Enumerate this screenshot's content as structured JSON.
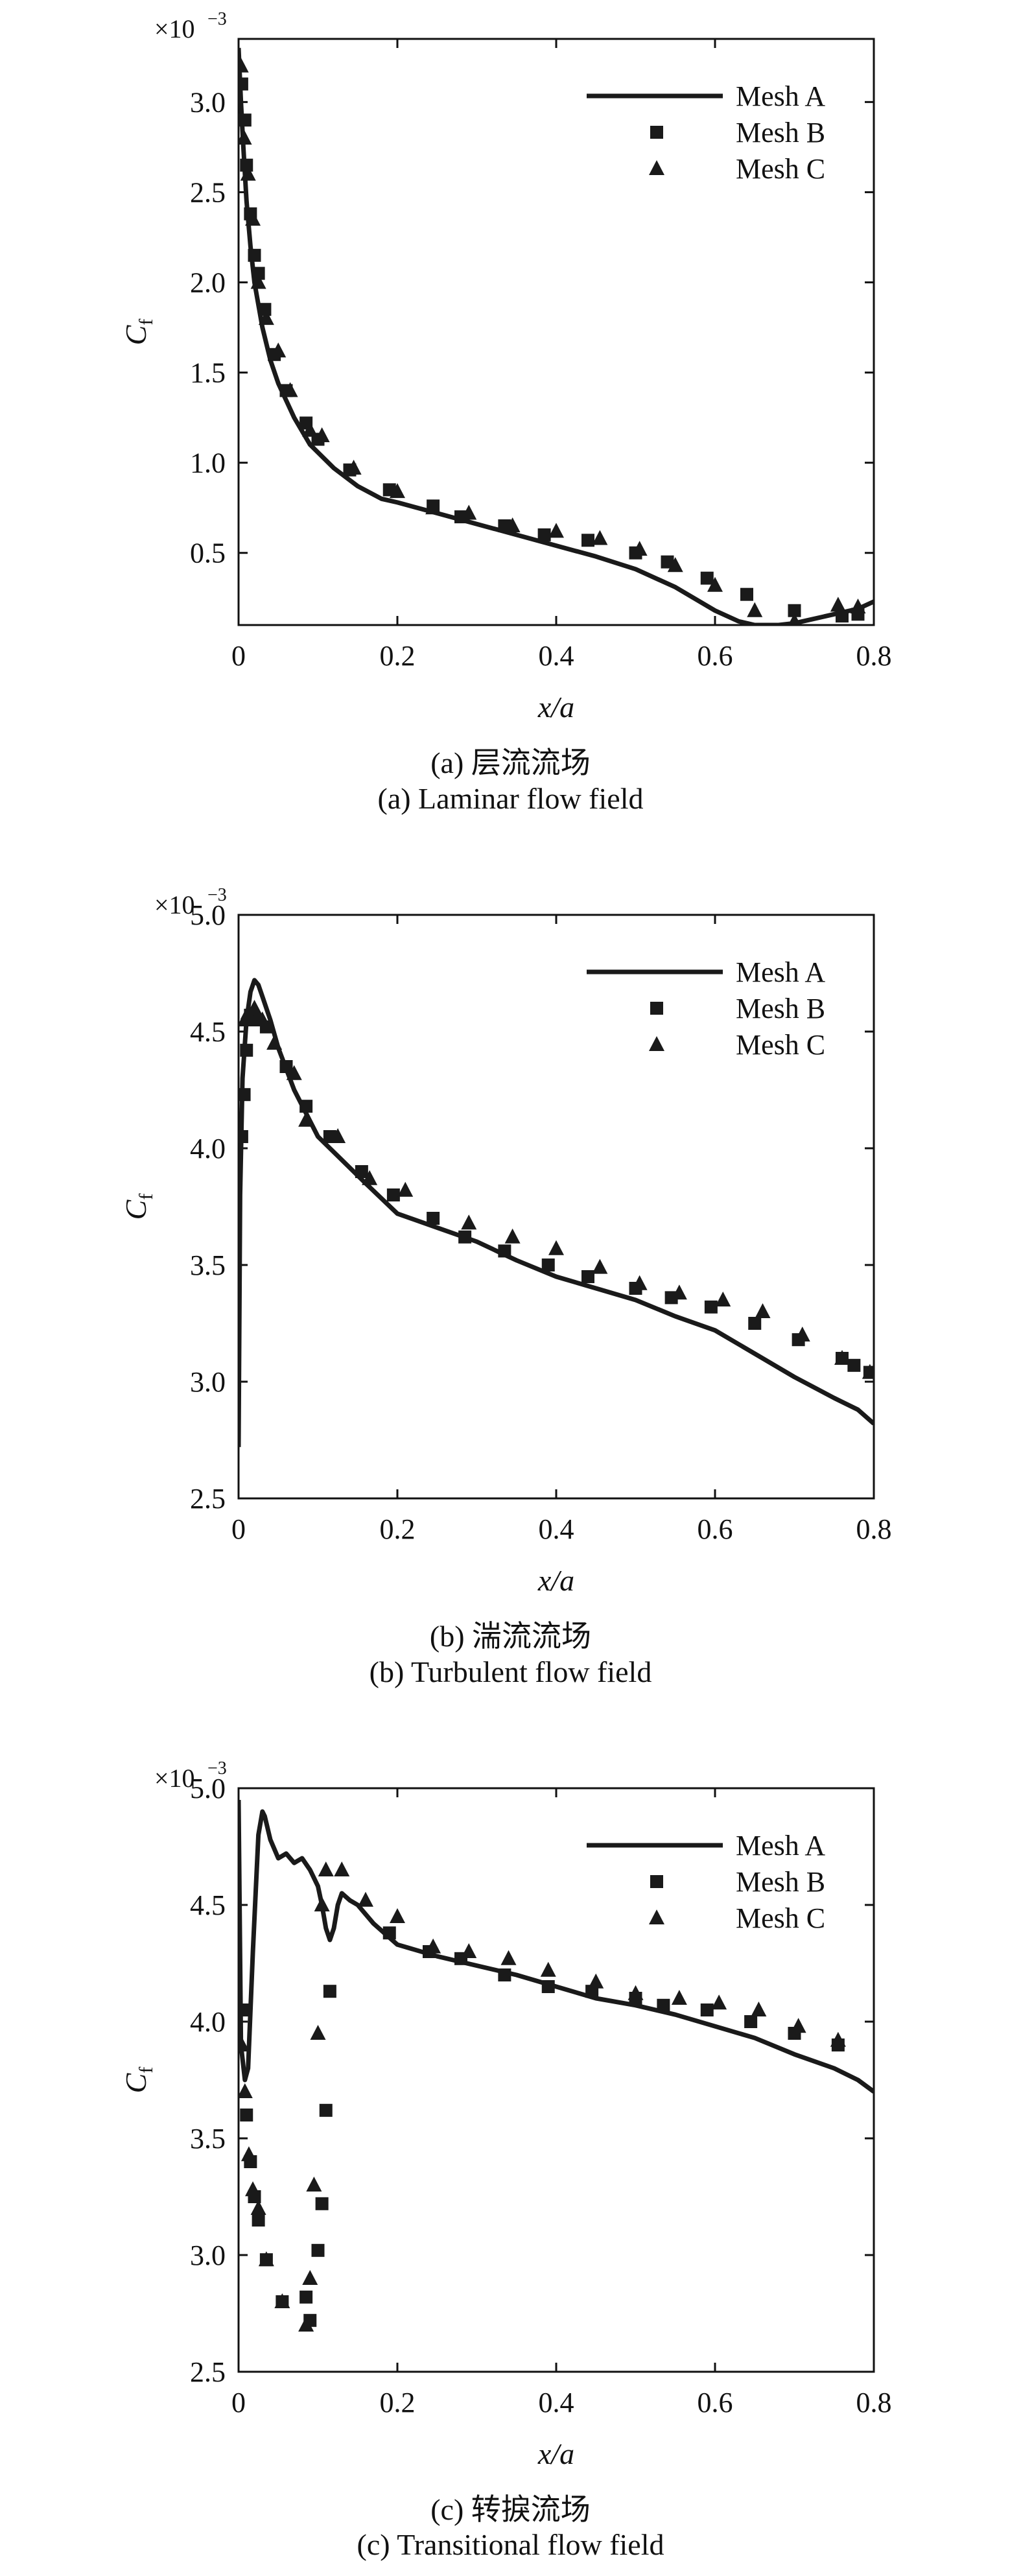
{
  "chart_data": [
    {
      "type": "line",
      "caption_cn": "(a) 层流流场",
      "caption_en": "(a) Laminar flow field",
      "xlabel": "x/a",
      "ylabel": "C",
      "ylabel_sub": "f",
      "scale_base": "×10",
      "scale_exp": "−3",
      "xlim": [
        0,
        0.8
      ],
      "ylim": [
        0.1,
        3.35
      ],
      "xticks": [
        0,
        0.2,
        0.4,
        0.6,
        0.8
      ],
      "xtick_labels": [
        "0",
        "0.2",
        "0.4",
        "0.6",
        "0.8"
      ],
      "yticks": [
        0.5,
        1.0,
        1.5,
        2.0,
        2.5,
        3.0
      ],
      "ytick_labels": [
        "0.5",
        "1.0",
        "1.5",
        "2.0",
        "2.5",
        "3.0"
      ],
      "legend": [
        "Mesh A",
        "Mesh B",
        "Mesh C"
      ],
      "series": [
        {
          "name": "Mesh A",
          "style": "line",
          "x": [
            0.0,
            0.003,
            0.006,
            0.01,
            0.015,
            0.02,
            0.03,
            0.04,
            0.05,
            0.07,
            0.09,
            0.12,
            0.15,
            0.18,
            0.2,
            0.25,
            0.3,
            0.35,
            0.4,
            0.45,
            0.5,
            0.55,
            0.6,
            0.63,
            0.65,
            0.68,
            0.7,
            0.72,
            0.75,
            0.78,
            0.8
          ],
          "y": [
            3.3,
            3.0,
            2.75,
            2.45,
            2.2,
            2.0,
            1.75,
            1.57,
            1.44,
            1.25,
            1.1,
            0.97,
            0.87,
            0.8,
            0.78,
            0.72,
            0.66,
            0.6,
            0.54,
            0.48,
            0.41,
            0.31,
            0.18,
            0.12,
            0.1,
            0.1,
            0.11,
            0.13,
            0.16,
            0.19,
            0.23
          ]
        },
        {
          "name": "Mesh B",
          "style": "square",
          "x": [
            0.004,
            0.008,
            0.01,
            0.015,
            0.02,
            0.025,
            0.033,
            0.045,
            0.06,
            0.085,
            0.1,
            0.14,
            0.19,
            0.245,
            0.28,
            0.335,
            0.385,
            0.44,
            0.5,
            0.54,
            0.59,
            0.64,
            0.7,
            0.76,
            0.78
          ],
          "y": [
            3.1,
            2.9,
            2.65,
            2.38,
            2.15,
            2.05,
            1.85,
            1.6,
            1.4,
            1.22,
            1.13,
            0.96,
            0.85,
            0.76,
            0.7,
            0.65,
            0.6,
            0.57,
            0.5,
            0.45,
            0.36,
            0.27,
            0.18,
            0.15,
            0.16
          ]
        },
        {
          "name": "Mesh C",
          "style": "triangle",
          "x": [
            0.003,
            0.007,
            0.012,
            0.018,
            0.025,
            0.035,
            0.05,
            0.065,
            0.09,
            0.105,
            0.145,
            0.2,
            0.245,
            0.29,
            0.345,
            0.4,
            0.455,
            0.505,
            0.55,
            0.6,
            0.65,
            0.7,
            0.755,
            0.78
          ],
          "y": [
            3.2,
            2.8,
            2.6,
            2.35,
            2.0,
            1.8,
            1.62,
            1.4,
            1.18,
            1.15,
            0.97,
            0.84,
            0.75,
            0.72,
            0.65,
            0.62,
            0.58,
            0.52,
            0.43,
            0.32,
            0.18,
            0.12,
            0.21,
            0.2
          ]
        }
      ]
    },
    {
      "type": "line",
      "caption_cn": "(b) 湍流流场",
      "caption_en": "(b) Turbulent flow field",
      "xlabel": "x/a",
      "ylabel": "C",
      "ylabel_sub": "f",
      "scale_base": "×10",
      "scale_exp": "−3",
      "xlim": [
        0,
        0.8
      ],
      "ylim": [
        2.5,
        5.0
      ],
      "xticks": [
        0,
        0.2,
        0.4,
        0.6,
        0.8
      ],
      "xtick_labels": [
        "0",
        "0.2",
        "0.4",
        "0.6",
        "0.8"
      ],
      "yticks": [
        2.5,
        3.0,
        3.5,
        4.0,
        4.5,
        5.0
      ],
      "ytick_labels": [
        "2.5",
        "3.0",
        "3.5",
        "4.0",
        "4.5",
        "5.0"
      ],
      "legend": [
        "Mesh A",
        "Mesh B",
        "Mesh C"
      ],
      "series": [
        {
          "name": "Mesh A",
          "style": "line",
          "x": [
            0.0,
            0.002,
            0.005,
            0.01,
            0.015,
            0.02,
            0.025,
            0.03,
            0.04,
            0.05,
            0.07,
            0.1,
            0.13,
            0.16,
            0.2,
            0.25,
            0.3,
            0.35,
            0.4,
            0.45,
            0.5,
            0.55,
            0.6,
            0.65,
            0.7,
            0.75,
            0.78,
            0.8
          ],
          "y": [
            2.72,
            3.8,
            4.3,
            4.55,
            4.67,
            4.72,
            4.7,
            4.65,
            4.55,
            4.43,
            4.25,
            4.05,
            3.95,
            3.85,
            3.72,
            3.66,
            3.6,
            3.52,
            3.45,
            3.4,
            3.35,
            3.28,
            3.22,
            3.12,
            3.02,
            2.93,
            2.88,
            2.82
          ]
        },
        {
          "name": "Mesh B",
          "style": "square",
          "x": [
            0.004,
            0.007,
            0.01,
            0.015,
            0.02,
            0.035,
            0.06,
            0.085,
            0.115,
            0.155,
            0.195,
            0.245,
            0.285,
            0.335,
            0.39,
            0.44,
            0.5,
            0.545,
            0.595,
            0.65,
            0.705,
            0.76,
            0.775,
            0.795
          ],
          "y": [
            4.05,
            4.23,
            4.42,
            4.57,
            4.55,
            4.52,
            4.35,
            4.18,
            4.05,
            3.9,
            3.8,
            3.7,
            3.62,
            3.56,
            3.5,
            3.45,
            3.4,
            3.36,
            3.32,
            3.25,
            3.18,
            3.1,
            3.07,
            3.04
          ]
        },
        {
          "name": "Mesh C",
          "style": "triangle",
          "x": [
            0.008,
            0.012,
            0.02,
            0.03,
            0.045,
            0.07,
            0.085,
            0.125,
            0.165,
            0.21,
            0.29,
            0.345,
            0.4,
            0.455,
            0.505,
            0.555,
            0.61,
            0.66,
            0.71,
            0.76,
            0.795
          ],
          "y": [
            4.55,
            4.58,
            4.6,
            4.55,
            4.45,
            4.32,
            4.12,
            4.05,
            3.87,
            3.82,
            3.68,
            3.62,
            3.57,
            3.49,
            3.42,
            3.38,
            3.35,
            3.3,
            3.2,
            3.1,
            3.04
          ]
        }
      ]
    },
    {
      "type": "line",
      "caption_cn": "(c) 转捩流场",
      "caption_en": "(c) Transitional flow field",
      "xlabel": "x/a",
      "ylabel": "C",
      "ylabel_sub": "f",
      "scale_base": "×10",
      "scale_exp": "−3",
      "xlim": [
        0,
        0.8
      ],
      "ylim": [
        2.5,
        5.0
      ],
      "xticks": [
        0,
        0.2,
        0.4,
        0.6,
        0.8
      ],
      "xtick_labels": [
        "0",
        "0.2",
        "0.4",
        "0.6",
        "0.8"
      ],
      "yticks": [
        2.5,
        3.0,
        3.5,
        4.0,
        4.5,
        5.0
      ],
      "ytick_labels": [
        "2.5",
        "3.0",
        "3.5",
        "4.0",
        "4.5",
        "5.0"
      ],
      "legend": [
        "Mesh A",
        "Mesh B",
        "Mesh C"
      ],
      "series": [
        {
          "name": "Mesh A",
          "style": "line",
          "x": [
            0.0,
            0.003,
            0.008,
            0.012,
            0.018,
            0.025,
            0.03,
            0.033,
            0.04,
            0.05,
            0.06,
            0.07,
            0.08,
            0.09,
            0.1,
            0.105,
            0.11,
            0.115,
            0.12,
            0.125,
            0.13,
            0.14,
            0.15,
            0.17,
            0.2,
            0.25,
            0.3,
            0.35,
            0.4,
            0.45,
            0.5,
            0.55,
            0.6,
            0.65,
            0.7,
            0.75,
            0.78,
            0.8
          ],
          "y": [
            4.95,
            3.9,
            3.75,
            3.8,
            4.3,
            4.8,
            4.9,
            4.88,
            4.78,
            4.7,
            4.72,
            4.68,
            4.7,
            4.65,
            4.58,
            4.5,
            4.4,
            4.35,
            4.4,
            4.5,
            4.55,
            4.52,
            4.5,
            4.42,
            4.33,
            4.28,
            4.24,
            4.2,
            4.15,
            4.1,
            4.07,
            4.03,
            3.98,
            3.93,
            3.86,
            3.8,
            3.75,
            3.7
          ]
        },
        {
          "name": "Mesh B",
          "style": "square",
          "x": [
            0.005,
            0.01,
            0.015,
            0.02,
            0.025,
            0.035,
            0.055,
            0.085,
            0.09,
            0.1,
            0.105,
            0.11,
            0.115,
            0.19,
            0.24,
            0.28,
            0.335,
            0.39,
            0.445,
            0.5,
            0.535,
            0.59,
            0.645,
            0.7,
            0.755
          ],
          "y": [
            4.05,
            3.6,
            3.4,
            3.25,
            3.15,
            2.98,
            2.8,
            2.82,
            2.72,
            3.02,
            3.22,
            3.62,
            4.13,
            4.38,
            4.3,
            4.27,
            4.2,
            4.15,
            4.13,
            4.1,
            4.07,
            4.05,
            4.0,
            3.95,
            3.9
          ]
        },
        {
          "name": "Mesh C",
          "style": "triangle",
          "x": [
            0.004,
            0.008,
            0.013,
            0.018,
            0.025,
            0.035,
            0.055,
            0.085,
            0.09,
            0.095,
            0.1,
            0.105,
            0.11,
            0.13,
            0.16,
            0.2,
            0.245,
            0.29,
            0.34,
            0.39,
            0.45,
            0.5,
            0.555,
            0.605,
            0.655,
            0.705,
            0.755
          ],
          "y": [
            3.9,
            3.7,
            3.43,
            3.28,
            3.2,
            2.98,
            2.8,
            2.7,
            2.9,
            3.3,
            3.95,
            4.5,
            4.65,
            4.65,
            4.52,
            4.45,
            4.32,
            4.3,
            4.27,
            4.22,
            4.17,
            4.12,
            4.1,
            4.08,
            4.05,
            3.98,
            3.92
          ]
        }
      ]
    }
  ]
}
